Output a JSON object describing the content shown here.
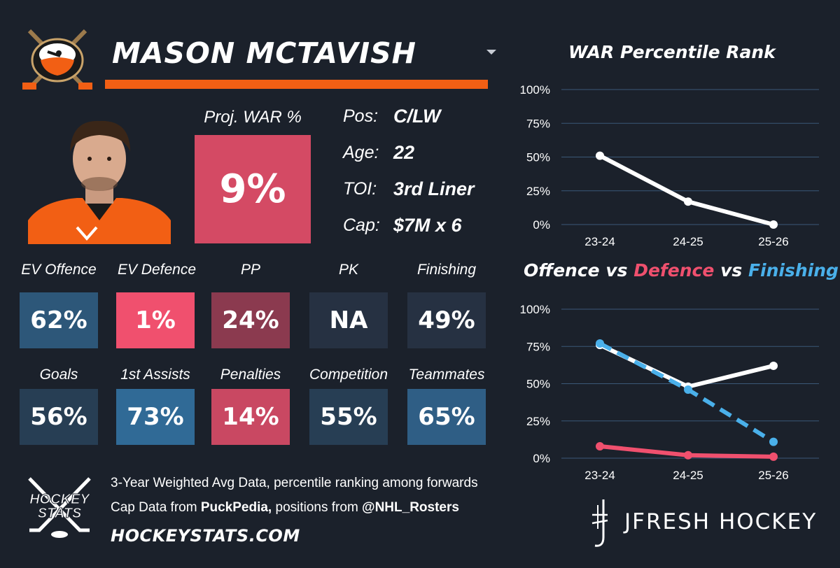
{
  "player": {
    "name": "MASON MCTAVISH",
    "proj_war_label": "Proj. WAR %",
    "proj_war_value": "9%",
    "info": [
      {
        "label": "Pos:",
        "value": "C/LW"
      },
      {
        "label": "Age:",
        "value": "22"
      },
      {
        "label": "TOI:",
        "value": "3rd Liner"
      },
      {
        "label": "Cap:",
        "value": "$7M x 6"
      }
    ]
  },
  "stats": [
    {
      "label": "EV Offence",
      "value": "62%",
      "color": "#2d5779"
    },
    {
      "label": "EV Defence",
      "value": "1%",
      "color": "#f0506e"
    },
    {
      "label": "PP",
      "value": "24%",
      "color": "#8b3a4f"
    },
    {
      "label": "PK",
      "value": "NA",
      "color": "#263142"
    },
    {
      "label": "Finishing",
      "value": "49%",
      "color": "#263142"
    },
    {
      "label": "Goals",
      "value": "56%",
      "color": "#273e54"
    },
    {
      "label": "1st Assists",
      "value": "73%",
      "color": "#306a96"
    },
    {
      "label": "Penalties",
      "value": "14%",
      "color": "#c94862"
    },
    {
      "label": "Competition",
      "value": "55%",
      "color": "#273e54"
    },
    {
      "label": "Teammates",
      "value": "65%",
      "color": "#2f5e85"
    }
  ],
  "footer": {
    "line1": "3-Year Weighted Avg Data, percentile ranking among forwards",
    "line2_pre": "Cap Data from ",
    "line2_bold1": "PuckPedia,",
    "line2_mid": " positions from ",
    "line2_bold2": "@NHL_Rosters",
    "site": "HOCKEYSTATS.COM",
    "brand": "JFRESH HOCKEY",
    "hs_logo_text_1": "HOCKEY",
    "hs_logo_text_2": "STATS"
  },
  "colors": {
    "background": "#1b212b",
    "accent_orange": "#f25f14",
    "offence": "#ffffff",
    "defence": "#f0506e",
    "finishing": "#4ab0ea",
    "grid": "#3b5878"
  },
  "chart_data": [
    {
      "type": "line",
      "title": "WAR Percentile Rank",
      "categories": [
        "23-24",
        "24-25",
        "25-26"
      ],
      "series": [
        {
          "name": "WAR",
          "values": [
            51,
            17,
            0
          ]
        }
      ],
      "ylim": [
        0,
        100
      ],
      "yticks": [
        "0%",
        "25%",
        "50%",
        "75%",
        "100%"
      ],
      "xlabel": "",
      "ylabel": ""
    },
    {
      "type": "line",
      "title_parts": [
        "Offence",
        "vs",
        "Defence",
        "vs",
        "Finishing"
      ],
      "categories": [
        "23-24",
        "24-25",
        "25-26"
      ],
      "series": [
        {
          "name": "Offence",
          "values": [
            76,
            48,
            62
          ]
        },
        {
          "name": "Defence",
          "values": [
            8,
            2,
            1
          ]
        },
        {
          "name": "Finishing",
          "values": [
            77,
            46,
            11
          ]
        }
      ],
      "ylim": [
        0,
        100
      ],
      "yticks": [
        "0%",
        "25%",
        "50%",
        "75%",
        "100%"
      ],
      "xlabel": "",
      "ylabel": ""
    }
  ]
}
